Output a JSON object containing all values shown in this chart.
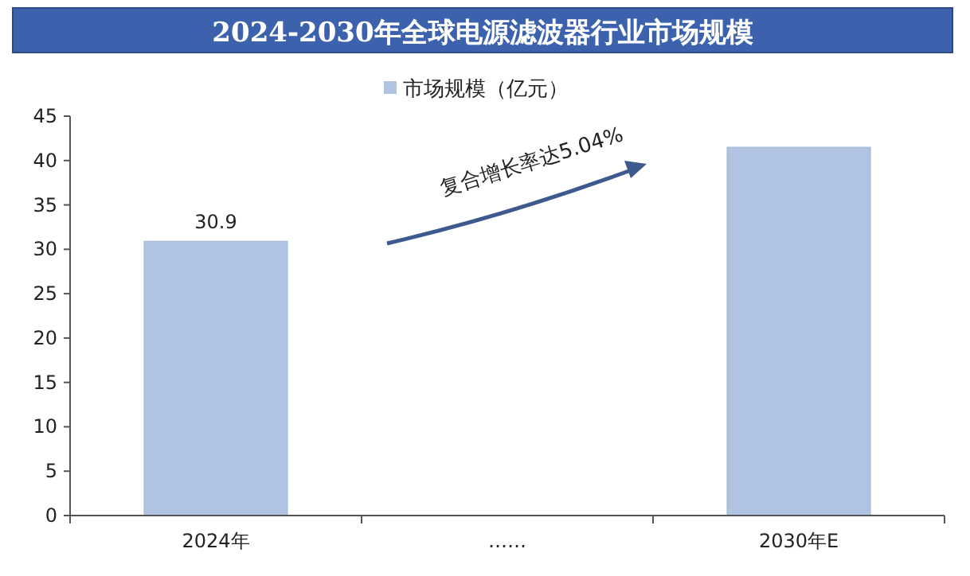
{
  "chart_data": {
    "type": "bar",
    "title": "2024-2030年全球电源滤波器行业市场规模",
    "categories": [
      "2024年",
      "……",
      "2030年E"
    ],
    "series": [
      {
        "name": "市场规模（亿元）",
        "color": "#b0c3e3",
        "values": [
          30.9,
          null,
          41.5
        ],
        "value_labels": [
          "30.9",
          null,
          null
        ]
      }
    ],
    "ylim": [
      0,
      45
    ],
    "yticks": [
      0,
      5,
      10,
      15,
      20,
      25,
      30,
      35,
      40,
      45
    ],
    "annotations": [
      "复合增长率达5.04%"
    ],
    "grid": false,
    "legend": "top"
  }
}
